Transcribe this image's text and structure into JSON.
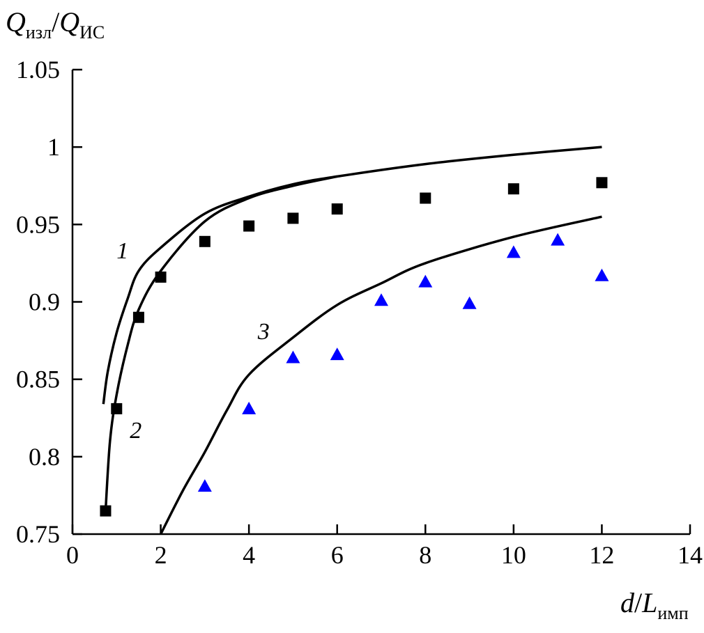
{
  "chart_data": {
    "type": "scatter",
    "ylabel": {
      "main1": "Q",
      "sub1": "изл",
      "sep": "/",
      "main2": "Q",
      "sub2": "ИС"
    },
    "xlabel": {
      "main1": "d",
      "sep": "/",
      "main2": "L",
      "sub2": "имп"
    },
    "xlim": [
      0,
      14
    ],
    "ylim": [
      0.75,
      1.05
    ],
    "xticks": [
      0,
      2,
      4,
      6,
      8,
      10,
      12,
      14
    ],
    "yticks": [
      0.75,
      0.8,
      0.85,
      0.9,
      0.95,
      1,
      1.05
    ],
    "xtick_labels": [
      "0",
      "2",
      "4",
      "6",
      "8",
      "10",
      "12",
      "14"
    ],
    "ytick_labels": [
      "0.75",
      "0.8",
      "0.85",
      "0.9",
      "0.95",
      "1",
      "1.05"
    ],
    "grid": false,
    "curves": [
      {
        "label": "1",
        "color": "#000000",
        "label_at": [
          1.0,
          0.928
        ],
        "x": [
          0.7,
          0.8,
          1,
          1.25,
          1.5,
          2,
          3,
          4,
          5,
          6,
          8,
          10,
          12
        ],
        "y": [
          0.834,
          0.855,
          0.88,
          0.902,
          0.92,
          0.935,
          0.957,
          0.968,
          0.976,
          0.981,
          0.989,
          0.995,
          1.0
        ]
      },
      {
        "label": "2",
        "color": "#000000",
        "label_at": [
          1.3,
          0.812
        ],
        "x": [
          0.75,
          0.85,
          1,
          1.25,
          1.5,
          2,
          3,
          4,
          5,
          6
        ],
        "y": [
          0.765,
          0.81,
          0.84,
          0.872,
          0.895,
          0.92,
          0.952,
          0.967,
          0.975,
          0.981
        ]
      },
      {
        "label": "3",
        "color": "#000000",
        "label_at": [
          4.2,
          0.876
        ],
        "x": [
          2,
          2.5,
          3,
          3.5,
          4,
          5,
          6,
          7,
          8,
          10,
          12
        ],
        "y": [
          0.75,
          0.778,
          0.803,
          0.83,
          0.853,
          0.877,
          0.898,
          0.912,
          0.925,
          0.942,
          0.955
        ]
      }
    ],
    "series": [
      {
        "marker": "square",
        "color": "#000000",
        "x": [
          0.75,
          1,
          1.5,
          2,
          3,
          4,
          5,
          6,
          8,
          10,
          12
        ],
        "y": [
          0.765,
          0.831,
          0.89,
          0.916,
          0.939,
          0.949,
          0.954,
          0.96,
          0.967,
          0.973,
          0.977
        ]
      },
      {
        "marker": "triangle",
        "color": "#0000ff",
        "x": [
          3,
          4,
          5,
          6,
          7,
          8,
          9,
          10,
          11,
          12
        ],
        "y": [
          0.781,
          0.831,
          0.864,
          0.866,
          0.901,
          0.913,
          0.899,
          0.932,
          0.94,
          0.917
        ]
      }
    ]
  }
}
